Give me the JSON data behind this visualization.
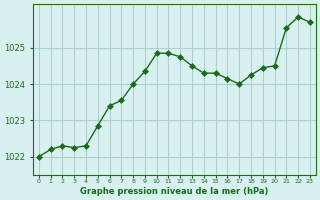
{
  "x": [
    0,
    1,
    2,
    3,
    4,
    5,
    6,
    7,
    8,
    9,
    10,
    11,
    12,
    13,
    14,
    15,
    16,
    17,
    18,
    19,
    20,
    21,
    22,
    23
  ],
  "y": [
    1022.0,
    1022.2,
    1022.3,
    1022.25,
    1022.3,
    1022.85,
    1023.4,
    1023.55,
    1024.0,
    1024.35,
    1024.85,
    1024.85,
    1024.75,
    1024.5,
    1024.3,
    1024.3,
    1024.15,
    1024.0,
    1024.25,
    1024.45,
    1024.5,
    1025.55,
    1025.85,
    1025.7
  ],
  "line_color": "#1a6b1a",
  "marker": "D",
  "marker_size": 3,
  "bg_color": "#d8f0f0",
  "grid_color": "#b0d0d0",
  "axis_color": "#1a6b1a",
  "tick_color": "#1a6b1a",
  "label_color": "#1a6b1a",
  "xlabel": "Graphe pression niveau de la mer (hPa)",
  "ylim": [
    1021.5,
    1026.2
  ],
  "yticks": [
    1022,
    1023,
    1024,
    1025
  ],
  "xlim": [
    -0.5,
    23.5
  ],
  "xticks": [
    0,
    1,
    2,
    3,
    4,
    5,
    6,
    7,
    8,
    9,
    10,
    11,
    12,
    13,
    14,
    15,
    16,
    17,
    18,
    19,
    20,
    21,
    22,
    23
  ]
}
